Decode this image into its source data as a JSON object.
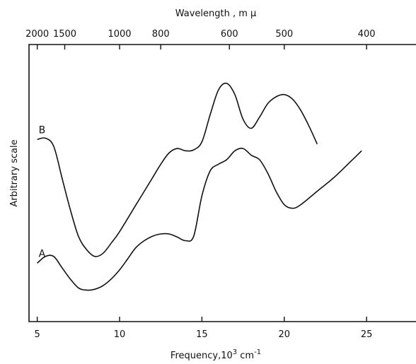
{
  "chart_data": {
    "type": "line",
    "xlabel_base": "Frequency,10",
    "xlabel_exp": "3",
    "xlabel_unit": " cm",
    "xlabel_unit_exp": "-1",
    "ylabel": "Arbitrary scale",
    "top_axis_label": "Wavelength , m µ",
    "xlim": [
      4.5,
      28
    ],
    "x_ticks": [
      5,
      10,
      15,
      20,
      25
    ],
    "x_tick_labels": [
      "5",
      "10",
      "15",
      "20",
      "25"
    ],
    "wavelength_ticks": [
      {
        "label": "2000",
        "freq": 5.0
      },
      {
        "label": "1500",
        "freq": 6.67
      },
      {
        "label": "1000",
        "freq": 10.0
      },
      {
        "label": "800",
        "freq": 12.5
      },
      {
        "label": "600",
        "freq": 16.67
      },
      {
        "label": "500",
        "freq": 20.0
      },
      {
        "label": "400",
        "freq": 25.0
      }
    ],
    "y_ticks_unlabeled": true,
    "series": [
      {
        "name": "B",
        "x": [
          5.0,
          5.5,
          6.0,
          6.5,
          7.0,
          7.5,
          8.0,
          8.5,
          9.0,
          9.5,
          10.0,
          11.0,
          12.0,
          12.5,
          13.0,
          13.5,
          14.0,
          14.5,
          15.0,
          15.5,
          16.0,
          16.5,
          17.0,
          17.5,
          18.0,
          18.5,
          19.0,
          19.5,
          20.0,
          20.5,
          21.0,
          21.5,
          22.0
        ],
        "y": [
          4.05,
          4.08,
          3.9,
          3.2,
          2.5,
          1.9,
          1.6,
          1.45,
          1.52,
          1.75,
          2.0,
          2.6,
          3.2,
          3.5,
          3.75,
          3.85,
          3.8,
          3.82,
          4.0,
          4.6,
          5.15,
          5.3,
          5.05,
          4.5,
          4.3,
          4.55,
          4.85,
          5.0,
          5.05,
          4.95,
          4.7,
          4.35,
          3.95
        ]
      },
      {
        "name": "A",
        "x": [
          5.0,
          5.5,
          6.0,
          6.5,
          7.0,
          7.5,
          8.0,
          8.5,
          9.0,
          9.5,
          10.0,
          10.5,
          11.0,
          11.5,
          12.0,
          12.5,
          13.0,
          13.5,
          14.0,
          14.5,
          15.0,
          15.5,
          16.0,
          16.5,
          17.0,
          17.5,
          18.0,
          18.5,
          19.0,
          19.5,
          20.0,
          20.5,
          21.0,
          22.0,
          23.0,
          24.0,
          24.7
        ],
        "y": [
          1.3,
          1.45,
          1.45,
          1.2,
          0.95,
          0.75,
          0.7,
          0.72,
          0.8,
          0.95,
          1.15,
          1.4,
          1.65,
          1.8,
          1.9,
          1.95,
          1.95,
          1.88,
          1.8,
          1.9,
          2.8,
          3.35,
          3.5,
          3.6,
          3.8,
          3.85,
          3.7,
          3.6,
          3.3,
          2.9,
          2.6,
          2.52,
          2.6,
          2.9,
          3.2,
          3.55,
          3.8
        ]
      }
    ]
  }
}
